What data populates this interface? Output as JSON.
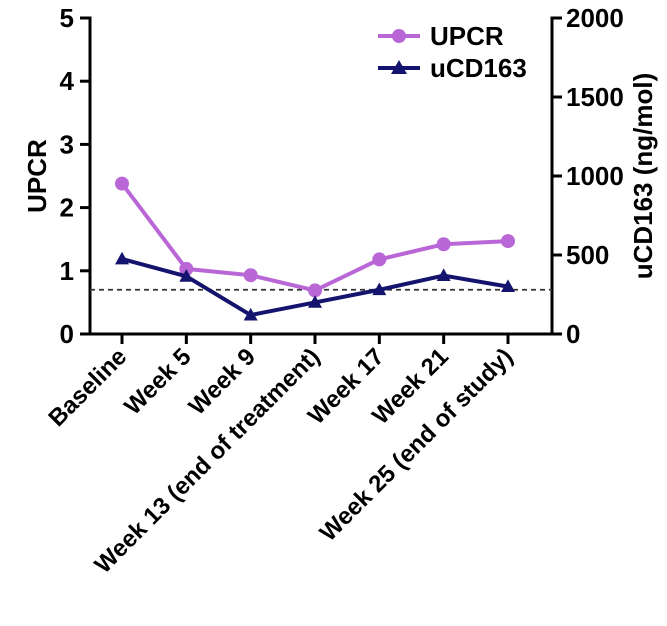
{
  "chart_data": {
    "type": "line",
    "categories": [
      "Baseline",
      "Week 5",
      "Week 9",
      "Week 13 (end of treatment)",
      "Week 17",
      "Week 21",
      "Week 25 (end of study)"
    ],
    "series": [
      {
        "name": "UPCR",
        "axis": "left",
        "marker": "circle",
        "color": "#b966d6",
        "values": [
          2.38,
          1.03,
          0.93,
          0.69,
          1.18,
          1.42,
          1.47
        ]
      },
      {
        "name": "uCD163",
        "axis": "right",
        "marker": "triangle",
        "color": "#14146e",
        "values": [
          475,
          365,
          120,
          200,
          280,
          370,
          300
        ]
      }
    ],
    "ylabel": "UPCR",
    "y2label": "uCD163 (ng/mol)",
    "ylim": [
      0,
      5
    ],
    "y2lim": [
      0,
      2000
    ],
    "yticks": [
      "0",
      "1",
      "2",
      "3",
      "4",
      "5"
    ],
    "y2ticks": [
      "0",
      "500",
      "1000",
      "1500",
      "2000"
    ],
    "reference_line": {
      "axis": "left",
      "value": 0.7,
      "style": "dashed"
    },
    "legend": "top-right",
    "grid": false
  }
}
